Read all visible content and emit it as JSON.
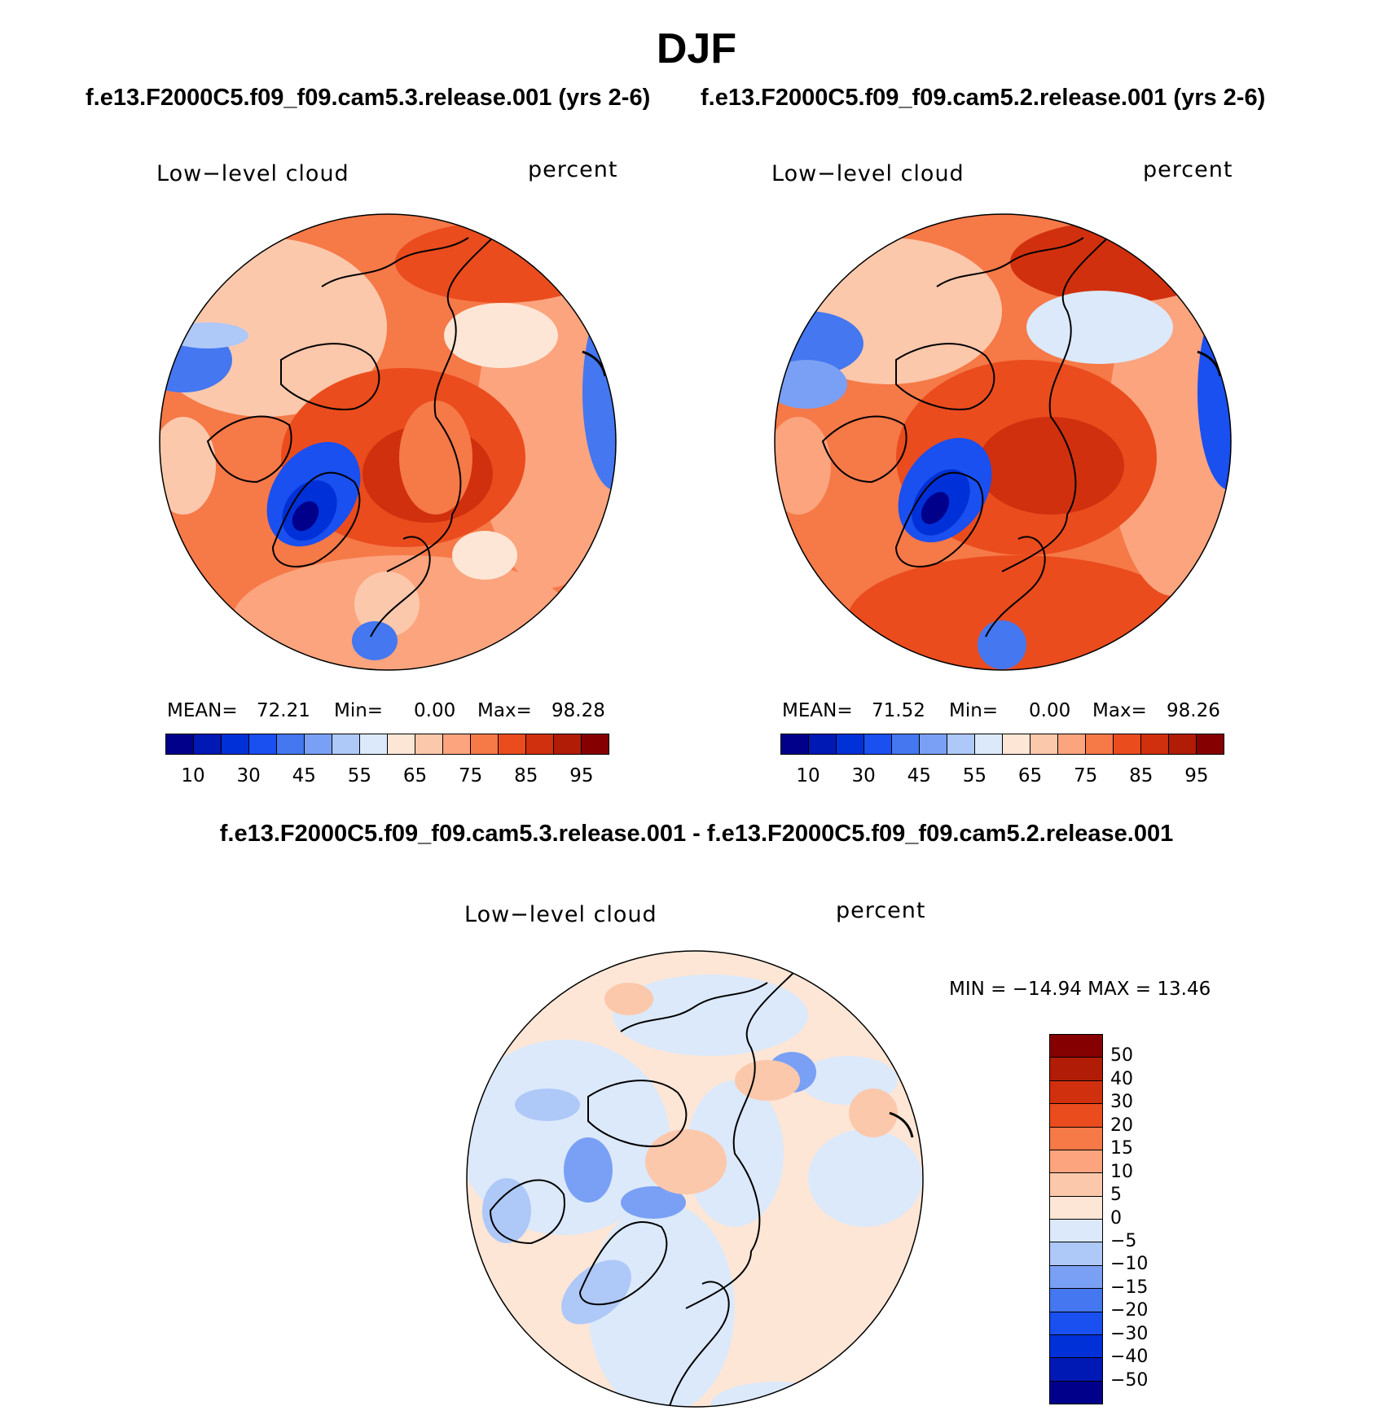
{
  "figure": {
    "season": "DJF",
    "test_run": "f.e13.F2000C5.f09_f09.cam5.3.release.001 (yrs 2-6)",
    "control_run": "f.e13.F2000C5.f09_f09.cam5.2.release.001 (yrs 2-6)",
    "diff_title": "f.e13.F2000C5.f09_f09.cam5.3.release.001 - f.e13.F2000C5.f09_f09.cam5.2.release.001"
  },
  "panels": [
    {
      "variable": "Low−level cloud",
      "units": "percent",
      "mean_label": "MEAN=",
      "mean": "72.21",
      "min_label": "Min=",
      "min": "0.00",
      "max_label": "Max=",
      "max": "98.28"
    },
    {
      "variable": "Low−level cloud",
      "units": "percent",
      "mean_label": "MEAN=",
      "mean": "71.52",
      "min_label": "Min=",
      "min": "0.00",
      "max_label": "Max=",
      "max": "98.26"
    }
  ],
  "diff_panel": {
    "variable": "Low−level cloud",
    "units": "percent",
    "minmax": "MIN = −14.94 MAX =   13.46"
  },
  "abs_colorbar": {
    "colors": [
      "#00008b",
      "#0018b4",
      "#0030d8",
      "#1a4ff0",
      "#4477f0",
      "#7aa0f5",
      "#aec8f8",
      "#dbe9fb",
      "#fde6d6",
      "#fcc8ac",
      "#fba47e",
      "#f67948",
      "#ea4c1e",
      "#d1300e",
      "#b01c06",
      "#850000"
    ],
    "tick_labels": [
      "10",
      "30",
      "45",
      "55",
      "65",
      "75",
      "85",
      "95"
    ]
  },
  "diff_colorbar": {
    "colors_top_to_bottom": [
      "#850000",
      "#b01c06",
      "#d1300e",
      "#ea4c1e",
      "#f67948",
      "#fba47e",
      "#fcc8ac",
      "#fde6d6",
      "#dbe9fb",
      "#aec8f8",
      "#7aa0f5",
      "#4477f0",
      "#1a4ff0",
      "#0030d8",
      "#0018b4",
      "#00008b"
    ],
    "tick_labels": [
      "50",
      "40",
      "30",
      "20",
      "15",
      "10",
      "5",
      "0",
      "−5",
      "−10",
      "−15",
      "−20",
      "−30",
      "−40",
      "−50"
    ]
  }
}
